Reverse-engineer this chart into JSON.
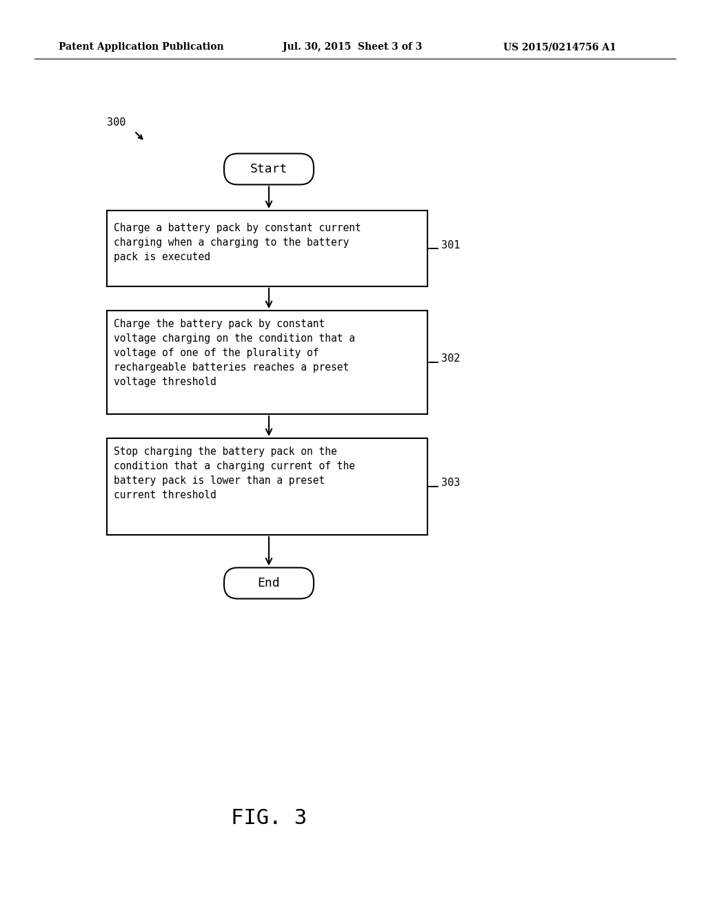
{
  "bg_color": "#ffffff",
  "header_left": "Patent Application Publication",
  "header_center": "Jul. 30, 2015  Sheet 3 of 3",
  "header_right": "US 2015/0214756 A1",
  "fig_label": "FIG. 3",
  "diagram_label": "300",
  "start_label": "Start",
  "end_label": "End",
  "boxes": [
    {
      "id": "301",
      "label": "301",
      "text": "Charge a battery pack by constant current\ncharging when a charging to the battery\npack is executed"
    },
    {
      "id": "302",
      "label": "302",
      "text": "Charge the battery pack by constant\nvoltage charging on the condition that a\nvoltage of one of the plurality of\nrechargeable batteries reaches a preset\nvoltage threshold"
    },
    {
      "id": "303",
      "label": "303",
      "text": "Stop charging the battery pack on the\ncondition that a charging current of the\nbattery pack is lower than a preset\ncurrent threshold"
    }
  ],
  "text_color": "#000000",
  "box_edge_color": "#000000",
  "arrow_color": "#000000"
}
